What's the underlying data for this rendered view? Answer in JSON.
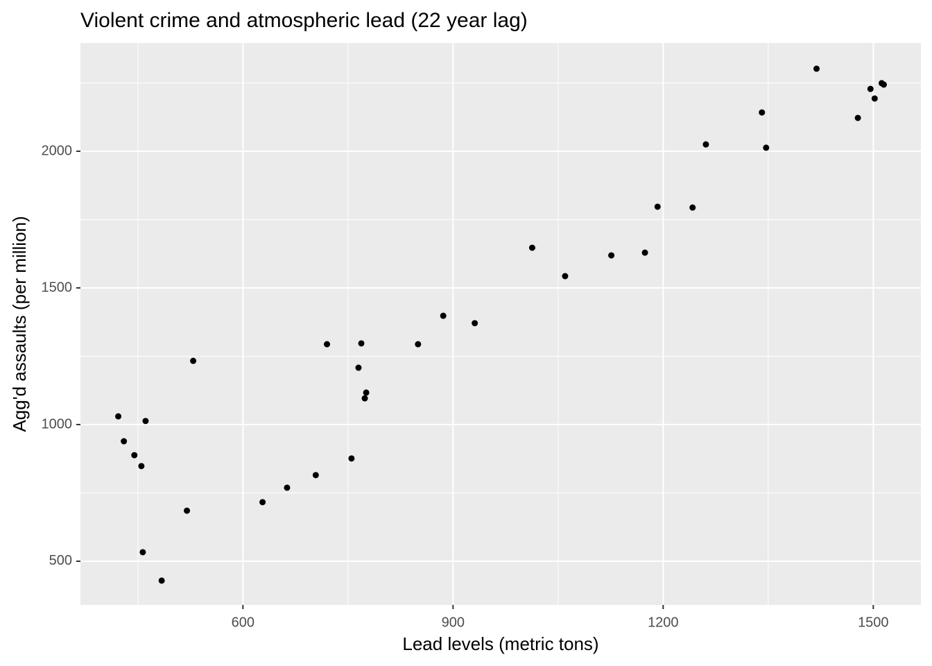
{
  "chart_data": {
    "type": "scatter",
    "title": "Violent crime and atmospheric lead (22 year lag)",
    "x_label": "Lead levels (metric tons)",
    "y_label": "Agg'd assaults (per million)",
    "x": [
      422,
      430,
      445,
      455,
      461,
      457,
      484,
      520,
      529,
      628,
      663,
      704,
      720,
      755,
      765,
      769,
      774,
      776,
      850,
      886,
      931,
      1013,
      1060,
      1126,
      1174,
      1192,
      1242,
      1261,
      1341,
      1347,
      1419,
      1478,
      1496,
      1502,
      1512,
      1515
    ],
    "values": [
      1030,
      939,
      888,
      848,
      1013,
      533,
      429,
      685,
      1233,
      716,
      769,
      815,
      1294,
      876,
      1208,
      1297,
      1096,
      1117,
      1294,
      1398,
      1371,
      1647,
      1543,
      1619,
      1629,
      1797,
      1794,
      2025,
      2142,
      2013,
      2302,
      2122,
      2228,
      2193,
      2249,
      2244
    ],
    "color": "#000000",
    "xlim": [
      368,
      1568
    ],
    "ylim": [
      340,
      2396
    ],
    "xticks": [
      600,
      900,
      1200,
      1500
    ],
    "yticks": [
      500,
      1000,
      1500,
      2000
    ],
    "grid": true
  }
}
